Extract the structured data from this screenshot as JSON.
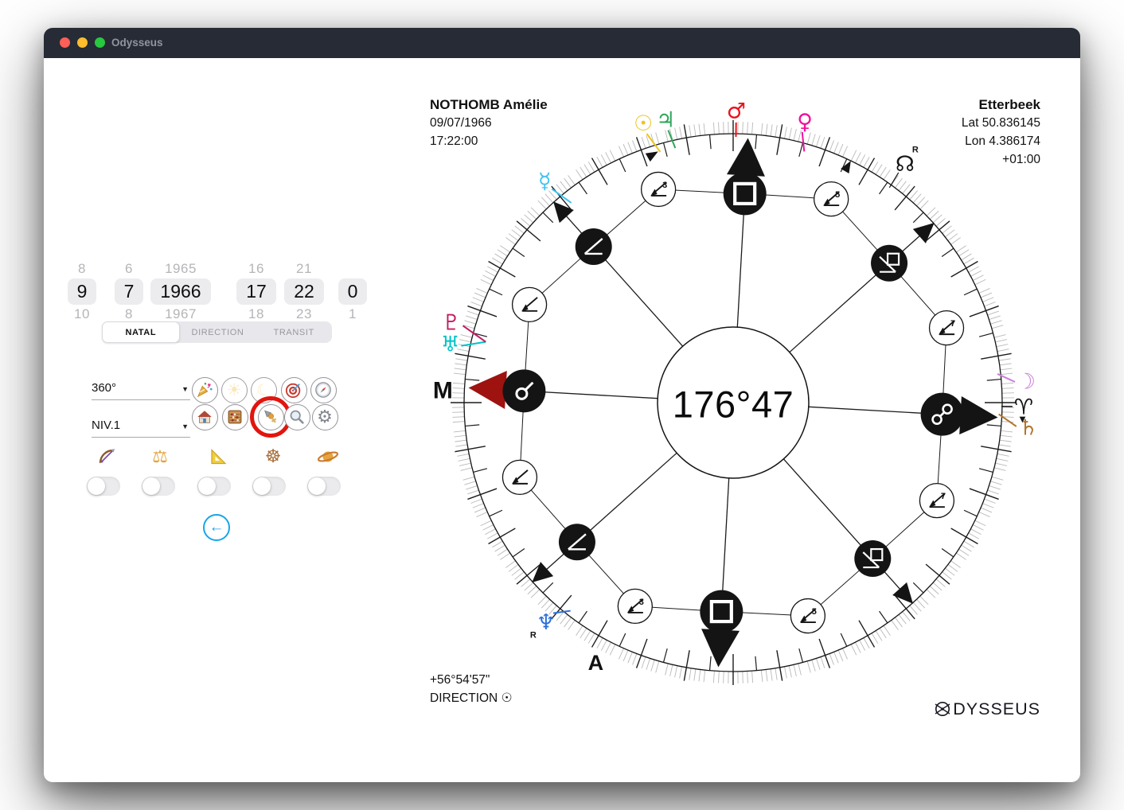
{
  "window": {
    "title": "Odysseus"
  },
  "traffic_lights": [
    "#ff5f57",
    "#febc2e",
    "#28c840"
  ],
  "date_picker": {
    "columns": [
      {
        "name": "day",
        "above": "8",
        "selected": "9",
        "below": "10"
      },
      {
        "name": "month",
        "above": "6",
        "selected": "7",
        "below": "8"
      },
      {
        "name": "year",
        "above": "1965",
        "selected": "1966",
        "below": "1967"
      },
      {
        "name": "hour",
        "above": "16",
        "selected": "17",
        "below": "18"
      },
      {
        "name": "minute",
        "above": "21",
        "selected": "22",
        "below": "23"
      },
      {
        "name": "second",
        "above": "",
        "selected": "0",
        "below": "1"
      }
    ]
  },
  "tabs": [
    {
      "label": "NATAL",
      "active": true
    },
    {
      "label": "DIRECTION",
      "active": false
    },
    {
      "label": "TRANSIT",
      "active": false
    }
  ],
  "dropdowns": {
    "zoom": "360°",
    "level": "NIV.1"
  },
  "buttons_row1": [
    {
      "icon": "party-popper",
      "disabled": false
    },
    {
      "icon": "sun",
      "disabled": true
    },
    {
      "icon": "moon",
      "disabled": true
    },
    {
      "icon": "target",
      "disabled": false
    },
    {
      "icon": "compass",
      "disabled": false
    }
  ],
  "buttons_row2": [
    {
      "icon": "house",
      "disabled": false
    },
    {
      "icon": "abacus",
      "disabled": false
    },
    {
      "icon": "planet-pointer",
      "disabled": false,
      "highlighted": true
    },
    {
      "icon": "magnifier",
      "disabled": false
    },
    {
      "icon": "gear",
      "disabled": false
    }
  ],
  "toggles": [
    {
      "icon": "bow-and-arrow",
      "on": false
    },
    {
      "icon": "balance-scale",
      "on": false
    },
    {
      "icon": "set-square",
      "on": false
    },
    {
      "icon": "wheel",
      "on": false
    },
    {
      "icon": "ringed-planet",
      "on": false
    }
  ],
  "chart": {
    "person": {
      "name": "NOTHOMB Amélie",
      "date": "09/07/1966",
      "time": "17:22:00"
    },
    "place": {
      "city": "Etterbeek",
      "lat": "Lat 50.836145",
      "lon": "Lon 4.386174",
      "tz": "+01:00"
    },
    "center_value": "176°47",
    "footer": {
      "arc": "+56°54'57\"",
      "mode": "DIRECTION",
      "mode_symbol": "☉"
    },
    "logo": "ODYSSEUS",
    "dial": {
      "rotation": 3.2,
      "axis_labels": [
        {
          "text": "M",
          "angle": 272.5,
          "r": 365
        },
        {
          "text": "A",
          "angle": 207.9,
          "r": 369
        }
      ],
      "badges": [
        {
          "a": 0,
          "kind": "cardinal",
          "glyph": "square",
          "arrow": "#141414"
        },
        {
          "a": 22.5,
          "kind": "minor",
          "glyph": "semisquare-arrow",
          "sup": "5"
        },
        {
          "a": 45,
          "kind": "mid",
          "glyph": "sesquiquadrate"
        },
        {
          "a": 67.5,
          "kind": "minor",
          "glyph": "semisquare-arrow",
          "sup": "7"
        },
        {
          "a": 90,
          "kind": "cardinal",
          "glyph": "opposition",
          "arrow": "#141414"
        },
        {
          "a": 112.5,
          "kind": "minor",
          "glyph": "semisquare-arrow",
          "sup": "7"
        },
        {
          "a": 135,
          "kind": "mid",
          "glyph": "sesquiquadrate"
        },
        {
          "a": 157.5,
          "kind": "minor",
          "glyph": "semisquare-arrow",
          "sup": "5"
        },
        {
          "a": 180,
          "kind": "cardinal",
          "glyph": "square",
          "arrow": "#141414"
        },
        {
          "a": 202.5,
          "kind": "minor",
          "glyph": "semisquare-arrow",
          "sup": "3"
        },
        {
          "a": 225,
          "kind": "mid",
          "glyph": "semisquare"
        },
        {
          "a": 247.5,
          "kind": "minor",
          "glyph": "semisquare-arrow",
          "sup": ""
        },
        {
          "a": 270,
          "kind": "cardinal",
          "glyph": "conjunction",
          "arrow": "#9e1310"
        },
        {
          "a": 292.5,
          "kind": "minor",
          "glyph": "semisquare-arrow",
          "sup": ""
        },
        {
          "a": 315,
          "kind": "mid",
          "glyph": "semisquare"
        },
        {
          "a": 337.5,
          "kind": "minor",
          "glyph": "semisquare-arrow",
          "sup": "3"
        }
      ],
      "rim_arrows": [
        {
          "a": 341.5,
          "bearing": 60
        },
        {
          "a": 25.8,
          "bearing": 30
        }
      ]
    },
    "planets": [
      {
        "name": "mercury",
        "glyph": "☿",
        "color": "#3fc4f2",
        "a": 319.7,
        "r": 366,
        "line": [
          319.7,
          352,
          321,
          323
        ]
      },
      {
        "name": "sun",
        "glyph": "☉",
        "color": "#edc51f",
        "a": 342.2,
        "r": 369,
        "line": [
          342.2,
          355,
          343.8,
          328
        ]
      },
      {
        "name": "jupiter",
        "glyph": "♃",
        "color": "#2fa65a",
        "a": 346.6,
        "r": 366,
        "line": [
          346.6,
          352,
          347.2,
          328
        ]
      },
      {
        "name": "mars",
        "glyph": "♂",
        "color": "#e8141c",
        "a": 0.6,
        "r": 367,
        "line": [
          0.6,
          352,
          0.6,
          334
        ]
      },
      {
        "name": "venus",
        "glyph": "♀",
        "color": "#f0119b",
        "a": 14.3,
        "r": 365,
        "line": [
          14.3,
          351,
          15.8,
          328
        ]
      },
      {
        "name": "north-node",
        "glyph": "☊",
        "color": "#141414",
        "a": 35.7,
        "r": 370,
        "line": [
          35.7,
          356,
          36,
          334
        ],
        "lw": 1.2,
        "retro": [
          13,
          -14
        ]
      },
      {
        "name": "moon",
        "glyph": "☽",
        "color": "#c97fd9",
        "a": 85.8,
        "r": 369,
        "line": [
          85.8,
          355,
          83.8,
          334
        ]
      },
      {
        "name": "aries-point",
        "glyph": "♈",
        "color": "#141414",
        "a": 90.8,
        "r": 365,
        "line": [
          90.8,
          351,
          90.8,
          337
        ],
        "lw": 1.4,
        "mark": "▼",
        "mark_a": 93.2,
        "mark_r": 364
      },
      {
        "name": "saturn",
        "glyph": "♄",
        "color": "#b2762e",
        "a": 94.8,
        "r": 372,
        "line": [
          94.8,
          357,
          92.5,
          334
        ]
      },
      {
        "name": "neptune",
        "glyph": "♆",
        "color": "#2a70dc",
        "a": 220.5,
        "r": 362,
        "line": [
          220.5,
          348,
          218,
          332
        ],
        "retro": [
          -16,
          20
        ]
      },
      {
        "name": "uranus",
        "glyph": "♅",
        "color": "#00c4c8",
        "a": 281.8,
        "r": 363,
        "line": [
          281.8,
          349,
          283.8,
          320
        ]
      },
      {
        "name": "pluto",
        "glyph": "♇",
        "color": "#c11b63",
        "a": 285.9,
        "r": 368,
        "line": [
          285.9,
          353,
          283.8,
          320
        ]
      }
    ]
  }
}
